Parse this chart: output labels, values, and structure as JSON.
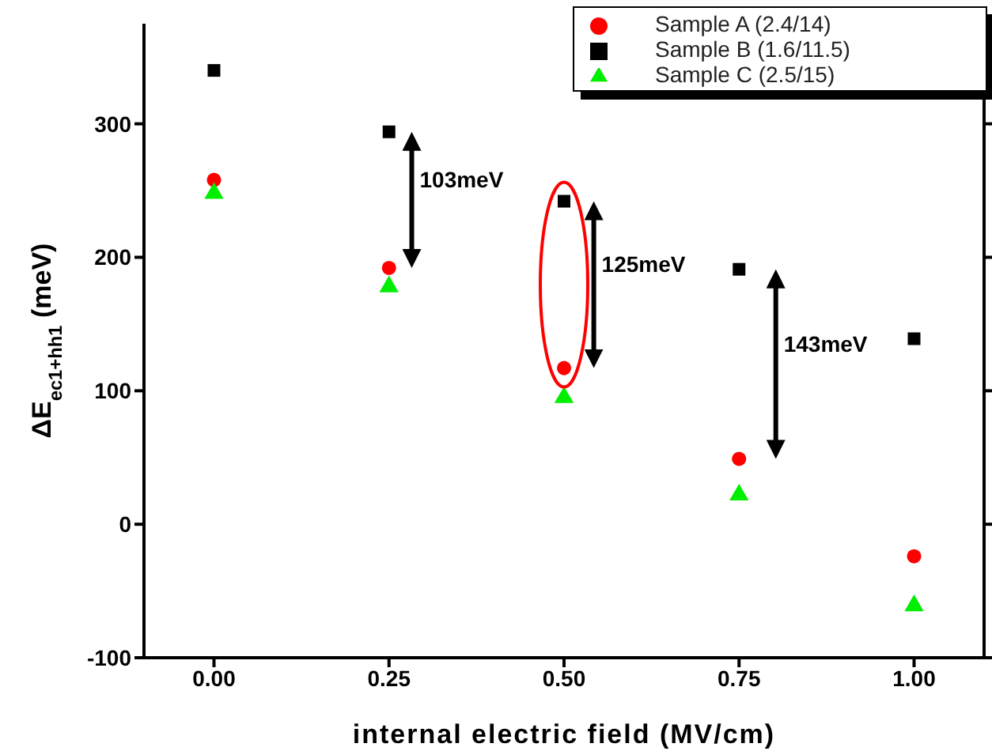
{
  "chart_data": {
    "type": "scatter",
    "xlabel": "internal electric field (MV/cm)",
    "ylabel": "ΔE$_{ec1+hh1}$ (meV)",
    "x": [
      0,
      0.25,
      0.5,
      0.75,
      1.0
    ],
    "series": [
      {
        "name": "Sample A (2.4/14)",
        "color": "#ff0000",
        "marker": "circle",
        "values": [
          258,
          192,
          117,
          49,
          -24
        ]
      },
      {
        "name": "Sample B (1.6/11.5)",
        "color": "#000000",
        "marker": "square",
        "values": [
          340,
          294,
          242,
          191,
          139
        ]
      },
      {
        "name": "Sample C (2.5/15)",
        "color": "#00ee00",
        "marker": "triangle",
        "values": [
          248,
          178,
          95,
          22,
          -61
        ]
      }
    ],
    "xlim": [
      -0.1,
      1.1
    ],
    "xticks": [
      {
        "value": 0,
        "label": "0.00"
      },
      {
        "value": 0.25,
        "label": "0.25"
      },
      {
        "value": 0.5,
        "label": "0.50"
      },
      {
        "value": 0.75,
        "label": "0.75"
      },
      {
        "value": 1.0,
        "label": "1.00"
      }
    ],
    "ylim": [
      -100,
      375
    ],
    "yticks": [
      -100,
      0,
      100,
      200,
      300
    ],
    "annotations": [
      "103meV",
      "125meV",
      "143meV"
    ],
    "legend": "top right",
    "grid": false
  }
}
